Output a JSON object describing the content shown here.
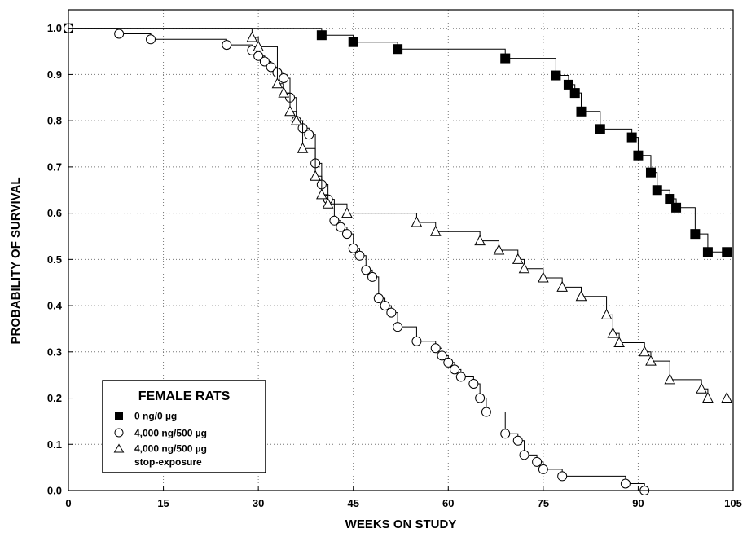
{
  "chart_data": {
    "type": "line",
    "xlabel": "WEEKS ON STUDY",
    "ylabel": "PROBABILITY OF SURVIVAL",
    "xlim": [
      0,
      105
    ],
    "ylim": [
      0,
      1.04
    ],
    "xticks": [
      0,
      15,
      30,
      45,
      60,
      75,
      90,
      105
    ],
    "yticks": [
      0.0,
      0.1,
      0.2,
      0.3,
      0.4,
      0.5,
      0.6,
      0.7,
      0.8,
      0.9,
      1.0
    ],
    "grid": true,
    "legend": {
      "title": "FEMALE RATS",
      "placement": "bottom-left",
      "entries": [
        {
          "label": "0 ng/0 µg",
          "marker": "filled-square"
        },
        {
          "label": "4,000 ng/500 µg",
          "marker": "open-circle"
        },
        {
          "label": "4,000 ng/500 µg",
          "sublabel": "stop-exposure",
          "marker": "open-triangle"
        }
      ]
    },
    "series": [
      {
        "marker": "filled-square",
        "color": "#000000",
        "steps": [
          [
            0,
            1.0
          ],
          [
            40,
            0.985
          ],
          [
            45,
            0.97
          ],
          [
            52,
            0.955
          ],
          [
            69,
            0.935
          ],
          [
            77,
            0.898
          ],
          [
            79,
            0.878
          ],
          [
            80,
            0.86
          ],
          [
            81,
            0.82
          ],
          [
            84,
            0.782
          ],
          [
            89,
            0.764
          ],
          [
            90,
            0.725
          ],
          [
            92,
            0.688
          ],
          [
            93,
            0.65
          ],
          [
            95,
            0.631
          ],
          [
            96,
            0.612
          ],
          [
            99,
            0.555
          ],
          [
            101,
            0.516
          ]
        ],
        "end_x": 104,
        "markers": [
          [
            0,
            1.0
          ],
          [
            40,
            0.985
          ],
          [
            45,
            0.97
          ],
          [
            52,
            0.955
          ],
          [
            69,
            0.935
          ],
          [
            77,
            0.898
          ],
          [
            79,
            0.878
          ],
          [
            80,
            0.86
          ],
          [
            81,
            0.82
          ],
          [
            84,
            0.782
          ],
          [
            89,
            0.764
          ],
          [
            90,
            0.725
          ],
          [
            92,
            0.688
          ],
          [
            93,
            0.65
          ],
          [
            95,
            0.631
          ],
          [
            96,
            0.612
          ],
          [
            99,
            0.555
          ],
          [
            101,
            0.516
          ],
          [
            104,
            0.516
          ]
        ]
      },
      {
        "marker": "open-circle",
        "color": "#000000",
        "steps": [
          [
            0,
            1.0
          ],
          [
            8,
            0.988
          ],
          [
            13,
            0.976
          ],
          [
            25,
            0.964
          ],
          [
            29,
            0.952
          ],
          [
            30,
            0.94
          ],
          [
            31,
            0.928
          ],
          [
            32,
            0.916
          ],
          [
            33,
            0.904
          ],
          [
            34,
            0.892
          ],
          [
            35,
            0.85
          ],
          [
            36,
            0.8
          ],
          [
            37,
            0.784
          ],
          [
            38,
            0.77
          ],
          [
            39,
            0.708
          ],
          [
            40,
            0.662
          ],
          [
            41,
            0.63
          ],
          [
            42,
            0.584
          ],
          [
            43,
            0.57
          ],
          [
            44,
            0.555
          ],
          [
            45,
            0.524
          ],
          [
            46,
            0.508
          ],
          [
            47,
            0.477
          ],
          [
            48,
            0.462
          ],
          [
            49,
            0.416
          ],
          [
            50,
            0.4
          ],
          [
            51,
            0.385
          ],
          [
            52,
            0.354
          ],
          [
            55,
            0.323
          ],
          [
            58,
            0.308
          ],
          [
            59,
            0.292
          ],
          [
            60,
            0.277
          ],
          [
            61,
            0.262
          ],
          [
            62,
            0.246
          ],
          [
            64,
            0.231
          ],
          [
            65,
            0.2
          ],
          [
            66,
            0.17
          ],
          [
            69,
            0.123
          ],
          [
            71,
            0.108
          ],
          [
            72,
            0.077
          ],
          [
            74,
            0.062
          ],
          [
            75,
            0.046
          ],
          [
            78,
            0.031
          ],
          [
            88,
            0.015
          ],
          [
            91,
            0.0
          ]
        ],
        "end_x": 91,
        "markers": [
          [
            0,
            1.0
          ],
          [
            8,
            0.988
          ],
          [
            13,
            0.976
          ],
          [
            25,
            0.964
          ],
          [
            29,
            0.952
          ],
          [
            30,
            0.94
          ],
          [
            31,
            0.928
          ],
          [
            32,
            0.916
          ],
          [
            33,
            0.904
          ],
          [
            34,
            0.892
          ],
          [
            35,
            0.85
          ],
          [
            36,
            0.8
          ],
          [
            37,
            0.784
          ],
          [
            38,
            0.77
          ],
          [
            39,
            0.708
          ],
          [
            40,
            0.662
          ],
          [
            41,
            0.63
          ],
          [
            42,
            0.584
          ],
          [
            43,
            0.57
          ],
          [
            44,
            0.555
          ],
          [
            45,
            0.524
          ],
          [
            46,
            0.508
          ],
          [
            47,
            0.477
          ],
          [
            48,
            0.462
          ],
          [
            49,
            0.416
          ],
          [
            50,
            0.4
          ],
          [
            51,
            0.385
          ],
          [
            52,
            0.354
          ],
          [
            55,
            0.323
          ],
          [
            58,
            0.308
          ],
          [
            59,
            0.292
          ],
          [
            60,
            0.277
          ],
          [
            61,
            0.262
          ],
          [
            62,
            0.246
          ],
          [
            64,
            0.231
          ],
          [
            65,
            0.2
          ],
          [
            66,
            0.17
          ],
          [
            69,
            0.123
          ],
          [
            71,
            0.108
          ],
          [
            72,
            0.077
          ],
          [
            74,
            0.062
          ],
          [
            75,
            0.046
          ],
          [
            78,
            0.031
          ],
          [
            88,
            0.015
          ],
          [
            91,
            0.0
          ]
        ]
      },
      {
        "marker": "open-triangle",
        "color": "#000000",
        "steps": [
          [
            0,
            1.0
          ],
          [
            29,
            0.98
          ],
          [
            30,
            0.96
          ],
          [
            33,
            0.88
          ],
          [
            34,
            0.86
          ],
          [
            35,
            0.82
          ],
          [
            36,
            0.8
          ],
          [
            37,
            0.74
          ],
          [
            39,
            0.68
          ],
          [
            40,
            0.64
          ],
          [
            41,
            0.62
          ],
          [
            44,
            0.6
          ],
          [
            55,
            0.58
          ],
          [
            58,
            0.56
          ],
          [
            65,
            0.54
          ],
          [
            68,
            0.52
          ],
          [
            71,
            0.5
          ],
          [
            72,
            0.48
          ],
          [
            75,
            0.46
          ],
          [
            78,
            0.44
          ],
          [
            81,
            0.42
          ],
          [
            85,
            0.38
          ],
          [
            86,
            0.34
          ],
          [
            87,
            0.32
          ],
          [
            91,
            0.3
          ],
          [
            92,
            0.28
          ],
          [
            95,
            0.24
          ],
          [
            100,
            0.22
          ],
          [
            101,
            0.2
          ]
        ],
        "end_x": 104,
        "markers": [
          [
            29,
            0.98
          ],
          [
            30,
            0.96
          ],
          [
            33,
            0.88
          ],
          [
            34,
            0.86
          ],
          [
            35,
            0.82
          ],
          [
            36,
            0.8
          ],
          [
            37,
            0.74
          ],
          [
            39,
            0.68
          ],
          [
            40,
            0.64
          ],
          [
            41,
            0.62
          ],
          [
            44,
            0.6
          ],
          [
            55,
            0.58
          ],
          [
            58,
            0.56
          ],
          [
            65,
            0.54
          ],
          [
            68,
            0.52
          ],
          [
            71,
            0.5
          ],
          [
            72,
            0.48
          ],
          [
            75,
            0.46
          ],
          [
            78,
            0.44
          ],
          [
            81,
            0.42
          ],
          [
            85,
            0.38
          ],
          [
            86,
            0.34
          ],
          [
            87,
            0.32
          ],
          [
            91,
            0.3
          ],
          [
            92,
            0.28
          ],
          [
            95,
            0.24
          ],
          [
            100,
            0.22
          ],
          [
            101,
            0.2
          ],
          [
            104,
            0.2
          ]
        ]
      }
    ]
  }
}
